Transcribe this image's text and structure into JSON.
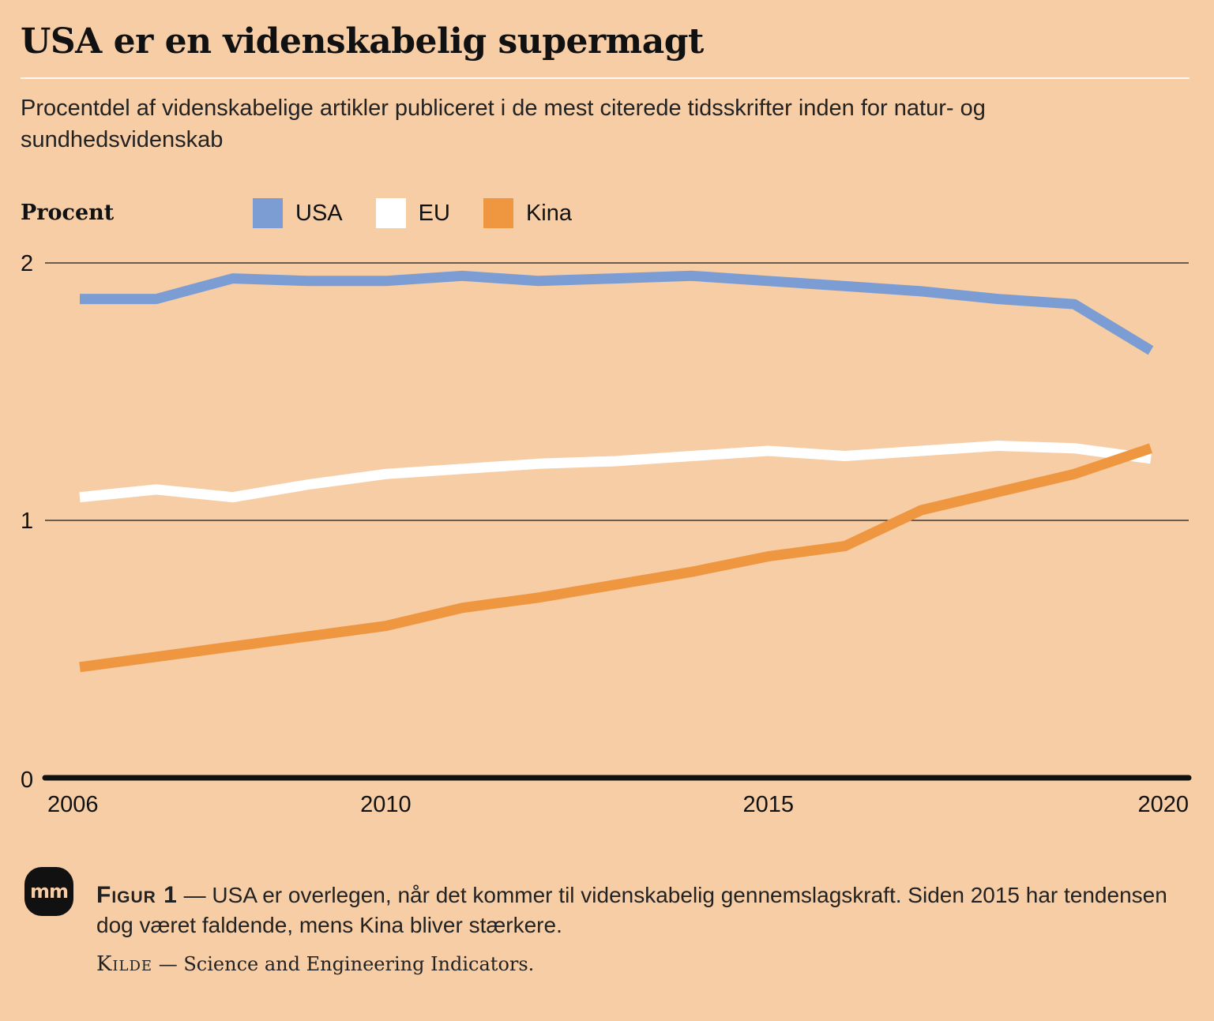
{
  "title": "USA er en videnskabelig supermagt",
  "subtitle": "Procentdel af videnskabelige artikler publiceret i de mest citerede tidsskrifter inden for natur- og sundhedsvidenskab",
  "caption": {
    "figure_label": "Figur 1",
    "dash": "—",
    "text": "USA er overlegen, når det kommer til videnskabelig gennemslagskraft. Siden 2015 har tendensen dog været faldende, mens Kina bliver stærkere.",
    "source_label": "Kilde",
    "source_text": "Science and Engineering Indicators."
  },
  "logo": {
    "text": "mm"
  },
  "colors": {
    "background": "#f7cda6",
    "USA": "#7b9dd4",
    "EU": "#ffffff",
    "Kina": "#ef9640"
  },
  "chart_data": {
    "type": "line",
    "ylabel": "Procent",
    "ylim": [
      0,
      2
    ],
    "yticks": [
      0,
      1,
      2
    ],
    "xlim": [
      2006,
      2020
    ],
    "xticks": [
      2006,
      2010,
      2015,
      2020
    ],
    "grid": true,
    "legend_position": "top",
    "x": [
      2006,
      2007,
      2008,
      2009,
      2010,
      2011,
      2012,
      2013,
      2014,
      2015,
      2016,
      2017,
      2018,
      2019,
      2020
    ],
    "series": [
      {
        "name": "USA",
        "color": "#7b9dd4",
        "values": [
          1.86,
          1.86,
          1.94,
          1.93,
          1.93,
          1.95,
          1.93,
          1.94,
          1.95,
          1.93,
          1.91,
          1.89,
          1.86,
          1.84,
          1.66
        ]
      },
      {
        "name": "EU",
        "color": "#ffffff",
        "values": [
          1.09,
          1.12,
          1.09,
          1.14,
          1.18,
          1.2,
          1.22,
          1.23,
          1.25,
          1.27,
          1.25,
          1.27,
          1.29,
          1.28,
          1.24
        ]
      },
      {
        "name": "Kina",
        "color": "#ef9640",
        "values": [
          0.43,
          0.47,
          0.51,
          0.55,
          0.59,
          0.66,
          0.7,
          0.75,
          0.8,
          0.86,
          0.9,
          1.04,
          1.11,
          1.18,
          1.28
        ]
      }
    ]
  }
}
